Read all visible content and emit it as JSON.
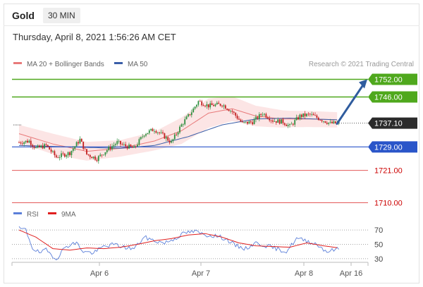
{
  "header": {
    "instrument": "Gold",
    "timeframe": "30 MIN",
    "timestamp": "Thursday, April 8, 2021 1:56:26 AM CET"
  },
  "colors": {
    "resistance": "#4fa81d",
    "support": "#2a55c9",
    "target": "#e35a5a",
    "last_price": "#2b2b2b",
    "ma20": "#e87a7a",
    "bollinger_fill": "#fbdcdc",
    "ma50": "#3a5ea8",
    "arrow": "#2f5c9e",
    "rsi": "#5b7fd9",
    "rsi_ma": "#e02020",
    "candle_up": "#2f8f3f",
    "candle_down": "#c21f1f"
  },
  "chart_data": [
    {
      "type": "candlestick",
      "legend": [
        {
          "label": "MA 20 + Bollinger Bands",
          "color": "#e87a7a"
        },
        {
          "label": "MA 50",
          "color": "#3a5ea8"
        }
      ],
      "legend_position": "top-left",
      "credit": "Research © 2021 Trading Central",
      "price_axis": "right",
      "ylim": [
        1707,
        1755
      ],
      "x_ticks": [
        "Apr 6",
        "Apr 7",
        "Apr 8",
        "Apr 16"
      ],
      "levels": [
        {
          "value": 1752.0,
          "label": "1752.00",
          "kind": "resistance"
        },
        {
          "value": 1746.0,
          "label": "1746.00",
          "kind": "resistance"
        },
        {
          "value": 1737.1,
          "label": "1737.10",
          "kind": "last_price"
        },
        {
          "value": 1729.0,
          "label": "1729.00",
          "kind": "support"
        },
        {
          "value": 1721.0,
          "label": "1721.00",
          "kind": "target"
        },
        {
          "value": 1710.0,
          "label": "1710.00",
          "kind": "target"
        }
      ],
      "arrow": {
        "from": 1737.1,
        "to": 1752.0,
        "direction": "up"
      },
      "anchors": [
        [
          0,
          1730.5
        ],
        [
          6,
          1731.0
        ],
        [
          10,
          1728.5
        ],
        [
          16,
          1729.5
        ],
        [
          22,
          1725.5
        ],
        [
          30,
          1727.0
        ],
        [
          36,
          1731.5
        ],
        [
          40,
          1726.5
        ],
        [
          46,
          1725.0
        ],
        [
          52,
          1728.0
        ],
        [
          58,
          1730.5
        ],
        [
          62,
          1729.5
        ],
        [
          68,
          1728.5
        ],
        [
          74,
          1733.5
        ],
        [
          80,
          1735.0
        ],
        [
          86,
          1732.5
        ],
        [
          90,
          1730.5
        ],
        [
          96,
          1736.5
        ],
        [
          102,
          1741.0
        ],
        [
          106,
          1744.5
        ],
        [
          112,
          1743.0
        ],
        [
          120,
          1743.5
        ],
        [
          126,
          1741.0
        ],
        [
          132,
          1737.0
        ],
        [
          138,
          1737.5
        ],
        [
          144,
          1740.5
        ],
        [
          150,
          1738.0
        ],
        [
          156,
          1737.5
        ],
        [
          160,
          1736.0
        ],
        [
          166,
          1739.5
        ],
        [
          172,
          1740.0
        ],
        [
          178,
          1738.5
        ],
        [
          184,
          1737.0
        ],
        [
          189,
          1737.1
        ]
      ],
      "ma20": [
        [
          0,
          1733.5
        ],
        [
          20,
          1730.0
        ],
        [
          40,
          1727.5
        ],
        [
          60,
          1728.5
        ],
        [
          80,
          1731.0
        ],
        [
          96,
          1734.5
        ],
        [
          112,
          1740.5
        ],
        [
          126,
          1742.0
        ],
        [
          140,
          1739.5
        ],
        [
          156,
          1738.5
        ],
        [
          172,
          1738.5
        ],
        [
          189,
          1738.2
        ]
      ],
      "ma50": [
        [
          0,
          1729.5
        ],
        [
          30,
          1729.0
        ],
        [
          60,
          1728.5
        ],
        [
          80,
          1729.5
        ],
        [
          100,
          1732.5
        ],
        [
          120,
          1736.5
        ],
        [
          140,
          1738.5
        ],
        [
          160,
          1738.8
        ],
        [
          189,
          1738.2
        ]
      ],
      "band_width": [
        [
          0,
          3.0
        ],
        [
          20,
          3.5
        ],
        [
          40,
          3.2
        ],
        [
          60,
          2.8
        ],
        [
          80,
          3.2
        ],
        [
          96,
          4.5
        ],
        [
          112,
          5.0
        ],
        [
          126,
          4.2
        ],
        [
          140,
          3.5
        ],
        [
          160,
          2.8
        ],
        [
          189,
          2.6
        ]
      ]
    },
    {
      "type": "line",
      "legend": [
        {
          "label": "RSI",
          "color": "#5b7fd9"
        },
        {
          "label": "9MA",
          "color": "#e02020"
        }
      ],
      "ylim": [
        25,
        78
      ],
      "y_ticks": [
        "70",
        "50",
        "30"
      ],
      "y_tick_values": [
        70,
        50,
        30
      ],
      "rsi": [
        [
          0,
          72
        ],
        [
          4,
          70
        ],
        [
          8,
          45
        ],
        [
          12,
          38
        ],
        [
          16,
          42
        ],
        [
          22,
          30
        ],
        [
          28,
          48
        ],
        [
          34,
          52
        ],
        [
          38,
          40
        ],
        [
          44,
          38
        ],
        [
          50,
          47
        ],
        [
          56,
          50
        ],
        [
          62,
          46
        ],
        [
          68,
          44
        ],
        [
          74,
          60
        ],
        [
          80,
          55
        ],
        [
          86,
          52
        ],
        [
          92,
          58
        ],
        [
          98,
          66
        ],
        [
          104,
          68
        ],
        [
          110,
          63
        ],
        [
          116,
          62
        ],
        [
          122,
          58
        ],
        [
          128,
          48
        ],
        [
          134,
          44
        ],
        [
          140,
          52
        ],
        [
          146,
          48
        ],
        [
          152,
          44
        ],
        [
          158,
          40
        ],
        [
          164,
          58
        ],
        [
          170,
          55
        ],
        [
          176,
          50
        ],
        [
          182,
          40
        ],
        [
          189,
          44
        ]
      ],
      "rsi_ma": [
        [
          0,
          70
        ],
        [
          10,
          60
        ],
        [
          20,
          44
        ],
        [
          30,
          42
        ],
        [
          40,
          45
        ],
        [
          50,
          44
        ],
        [
          60,
          46
        ],
        [
          70,
          50
        ],
        [
          80,
          55
        ],
        [
          90,
          58
        ],
        [
          100,
          63
        ],
        [
          110,
          65
        ],
        [
          120,
          60
        ],
        [
          130,
          52
        ],
        [
          140,
          48
        ],
        [
          150,
          47
        ],
        [
          160,
          46
        ],
        [
          170,
          52
        ],
        [
          180,
          48
        ],
        [
          189,
          45
        ]
      ]
    }
  ]
}
